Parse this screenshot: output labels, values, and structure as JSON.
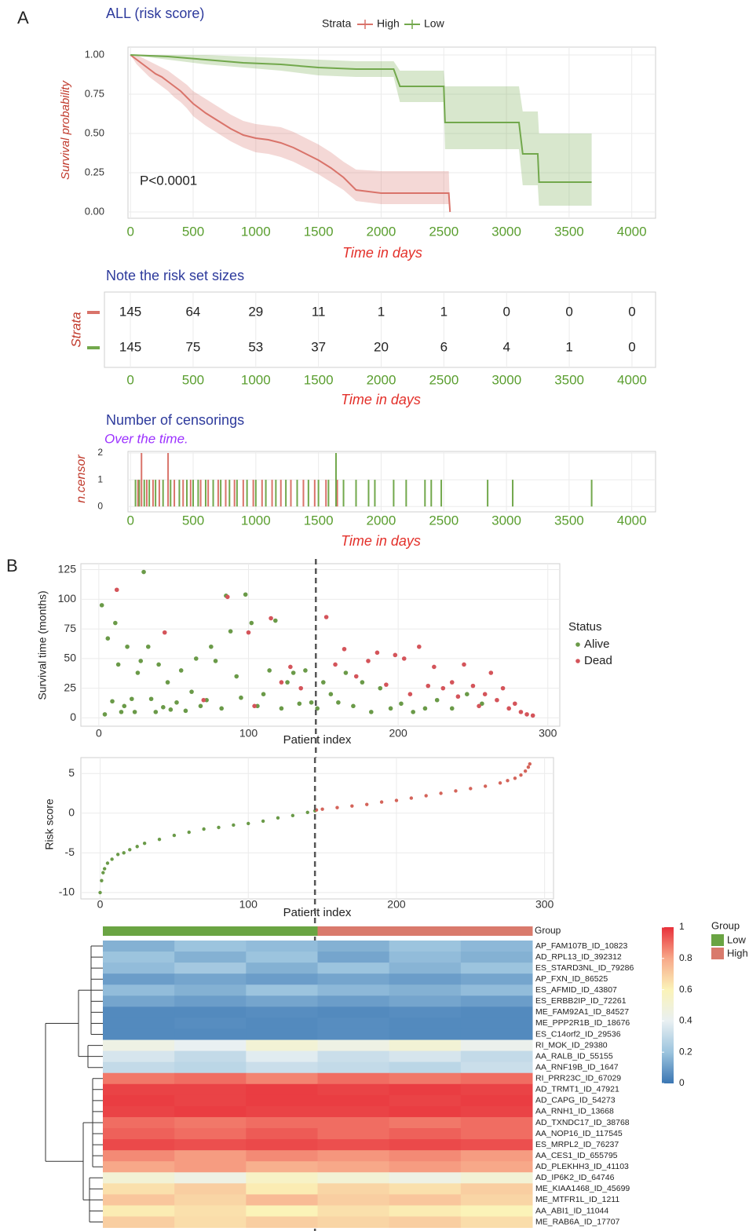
{
  "chart_data": [
    {
      "type": "survival",
      "panel": "A",
      "title": "ALL (risk score)",
      "legend_title": "Strata",
      "ylabel": "Survival probability",
      "xlabel": "Time in days",
      "annotation": "P<0.0001",
      "xlim": [
        -20,
        4190
      ],
      "ylim": [
        -0.04,
        1.05
      ],
      "xticks": [
        0,
        500,
        1000,
        1500,
        2000,
        2500,
        3000,
        3500,
        4000
      ],
      "yticks": [
        {
          "value": 0,
          "label": "0.00"
        },
        {
          "value": 0.25,
          "label": "0.25"
        },
        {
          "value": 0.5,
          "label": "0.50"
        },
        {
          "value": 0.75,
          "label": "0.75"
        },
        {
          "value": 1,
          "label": "1.00"
        }
      ],
      "grid": true,
      "series": [
        {
          "name": "High",
          "color": "#d9736a",
          "x": [
            0,
            50,
            100,
            150,
            200,
            250,
            300,
            350,
            400,
            450,
            500,
            600,
            700,
            800,
            900,
            1000,
            1100,
            1200,
            1300,
            1400,
            1500,
            1600,
            1700,
            1800,
            2000,
            2200,
            2540,
            2550
          ],
          "values": [
            1,
            0.97,
            0.94,
            0.91,
            0.88,
            0.86,
            0.83,
            0.8,
            0.77,
            0.73,
            0.69,
            0.63,
            0.58,
            0.53,
            0.49,
            0.47,
            0.46,
            0.44,
            0.41,
            0.37,
            0.33,
            0.28,
            0.22,
            0.14,
            0.12,
            0.12,
            0.12,
            0
          ],
          "lower": [
            1,
            0.94,
            0.9,
            0.86,
            0.83,
            0.8,
            0.77,
            0.73,
            0.7,
            0.66,
            0.61,
            0.55,
            0.5,
            0.45,
            0.41,
            0.38,
            0.37,
            0.35,
            0.32,
            0.28,
            0.24,
            0.19,
            0.14,
            0.07,
            0.05,
            0.05,
            0.05,
            0
          ],
          "upper": [
            1,
            1,
            0.98,
            0.96,
            0.94,
            0.92,
            0.9,
            0.87,
            0.84,
            0.81,
            0.77,
            0.72,
            0.67,
            0.62,
            0.58,
            0.56,
            0.55,
            0.54,
            0.51,
            0.47,
            0.43,
            0.38,
            0.32,
            0.27,
            0.26,
            0.26,
            0.26,
            0
          ]
        },
        {
          "name": "Low",
          "color": "#72a84c",
          "x": [
            0,
            300,
            600,
            900,
            1200,
            1500,
            1800,
            2100,
            2150,
            2500,
            2510,
            3100,
            3130,
            3250,
            3260,
            3680
          ],
          "values": [
            1,
            0.99,
            0.97,
            0.95,
            0.94,
            0.92,
            0.91,
            0.91,
            0.8,
            0.8,
            0.57,
            0.57,
            0.37,
            0.37,
            0.19,
            0.19
          ],
          "lower": [
            1,
            0.97,
            0.94,
            0.92,
            0.9,
            0.87,
            0.86,
            0.86,
            0.7,
            0.7,
            0.4,
            0.4,
            0.17,
            0.17,
            0.04,
            0.04
          ],
          "upper": [
            1,
            1,
            1,
            0.99,
            0.98,
            0.97,
            0.96,
            0.96,
            0.9,
            0.9,
            0.8,
            0.8,
            0.64,
            0.64,
            0.5,
            0.5
          ]
        }
      ]
    },
    {
      "type": "table",
      "title": "Note the risk set sizes",
      "ylabel": "Strata",
      "xlabel": "Time in days",
      "xlim": [
        -207,
        4188
      ],
      "xticks": [
        0,
        500,
        1000,
        1500,
        2000,
        2500,
        3000,
        3500,
        4000
      ],
      "grid": true,
      "x": [
        0,
        500,
        1000,
        1500,
        2000,
        2500,
        3000,
        3500,
        4000
      ],
      "series": [
        {
          "color": "#d9736a",
          "values": [
            145,
            64,
            29,
            11,
            1,
            1,
            0,
            0,
            0
          ]
        },
        {
          "color": "#72a84c",
          "values": [
            145,
            75,
            53,
            37,
            20,
            6,
            4,
            1,
            0
          ]
        }
      ]
    },
    {
      "type": "bar",
      "title": "Number of censorings",
      "subtitle": "Over the time.",
      "ylabel": "n.censor",
      "xlabel": "Time in days",
      "xlim": [
        -20,
        4190
      ],
      "ylim": [
        -0.2,
        2.06
      ],
      "xticks": [
        0,
        500,
        1000,
        1500,
        2000,
        2500,
        3000,
        3500,
        4000
      ],
      "yticks": [
        0,
        1,
        2
      ],
      "grid": true,
      "series": [
        {
          "color": "#d9736a",
          "x": [
            60,
            88,
            130,
            180,
            230,
            300,
            350,
            420,
            480,
            560,
            620,
            700,
            760,
            830,
            900,
            980,
            1050,
            1130,
            1200,
            1280,
            1380,
            1470,
            1560,
            1650
          ],
          "values": [
            1,
            2,
            1,
            1,
            1,
            2,
            1,
            1,
            1,
            1,
            1,
            1,
            1,
            1,
            1,
            1,
            1,
            1,
            1,
            1,
            1,
            1,
            1,
            1
          ]
        },
        {
          "color": "#72a84c",
          "x": [
            40,
            70,
            110,
            150,
            200,
            260,
            320,
            390,
            450,
            500,
            540,
            600,
            660,
            720,
            790,
            850,
            930,
            1000,
            1080,
            1160,
            1240,
            1330,
            1420,
            1500,
            1580,
            1640,
            1700,
            1800,
            1900,
            1950,
            2100,
            2200,
            2350,
            2400,
            2480,
            2850,
            3050,
            3680
          ],
          "values": [
            1,
            1,
            1,
            1,
            1,
            1,
            1,
            1,
            1,
            1,
            1,
            1,
            1,
            1,
            1,
            1,
            1,
            1,
            1,
            1,
            1,
            1,
            1,
            1,
            1,
            2,
            1,
            1,
            1,
            1,
            1,
            1,
            1,
            1,
            1,
            1,
            1,
            1
          ]
        }
      ]
    },
    {
      "type": "scatter",
      "panel": "B",
      "ylabel": "Survival time (months)",
      "xlabel": "Patient index",
      "legend_title": "Status",
      "xlim": [
        -12,
        308
      ],
      "ylim": [
        -7,
        130
      ],
      "xticks": [
        0,
        100,
        200,
        300
      ],
      "yticks": [
        0,
        25,
        50,
        75,
        100,
        125
      ],
      "grid": true,
      "cutoff": 145,
      "series": [
        {
          "name": "Alive",
          "color": "#6a9a48",
          "x": [
            2,
            4,
            6,
            9,
            11,
            13,
            15,
            17,
            19,
            22,
            24,
            26,
            28,
            30,
            33,
            35,
            38,
            40,
            43,
            46,
            48,
            52,
            55,
            58,
            62,
            65,
            68,
            72,
            75,
            78,
            82,
            85,
            88,
            92,
            95,
            98,
            102,
            106,
            110,
            114,
            118,
            122,
            126,
            130,
            134,
            138,
            142,
            146,
            150,
            155,
            160,
            165,
            170,
            176,
            182,
            188,
            195,
            202,
            210,
            218,
            226,
            236,
            246,
            256
          ],
          "values": [
            95,
            3,
            67,
            14,
            80,
            45,
            5,
            10,
            60,
            16,
            5,
            38,
            48,
            123,
            60,
            16,
            5,
            45,
            9,
            30,
            7,
            13,
            40,
            6,
            22,
            50,
            10,
            15,
            60,
            48,
            8,
            103,
            73,
            35,
            17,
            104,
            80,
            10,
            20,
            40,
            82,
            8,
            30,
            38,
            12,
            40,
            13,
            8,
            30,
            20,
            13,
            38,
            10,
            30,
            5,
            25,
            8,
            12,
            5,
            8,
            15,
            8,
            20,
            12
          ]
        },
        {
          "name": "Dead",
          "color": "#d4545a",
          "x": [
            12,
            44,
            70,
            86,
            100,
            104,
            115,
            122,
            128,
            135,
            152,
            158,
            164,
            172,
            180,
            186,
            192,
            198,
            204,
            208,
            214,
            220,
            224,
            230,
            236,
            240,
            244,
            250,
            254,
            258,
            262,
            266,
            270,
            274,
            278,
            282,
            286,
            290
          ],
          "values": [
            108,
            72,
            15,
            102,
            72,
            10,
            84,
            30,
            43,
            25,
            85,
            45,
            58,
            35,
            48,
            55,
            28,
            53,
            50,
            20,
            60,
            27,
            43,
            25,
            30,
            18,
            45,
            27,
            10,
            20,
            38,
            15,
            25,
            8,
            12,
            5,
            3,
            2
          ]
        }
      ]
    },
    {
      "type": "scatter",
      "ylabel": "Risk score",
      "xlabel": "Patient index",
      "xlim": [
        -13,
        306
      ],
      "ylim": [
        -10.8,
        7
      ],
      "xticks": [
        0,
        100,
        200,
        300
      ],
      "yticks": [
        -10,
        -5,
        0,
        5
      ],
      "grid": true,
      "cutoff": 145,
      "series": [
        {
          "color": "#6a9a48",
          "x": [
            0,
            1,
            2,
            3,
            5,
            8,
            12,
            16,
            20,
            25,
            30,
            40,
            50,
            60,
            70,
            80,
            90,
            100,
            110,
            120,
            130,
            140,
            145
          ],
          "values": [
            -10,
            -8.5,
            -7.5,
            -7,
            -6.3,
            -5.8,
            -5.2,
            -5,
            -4.6,
            -4.2,
            -3.8,
            -3.3,
            -2.8,
            -2.4,
            -2,
            -1.8,
            -1.5,
            -1.3,
            -1,
            -0.6,
            -0.3,
            0.1,
            0.3
          ]
        },
        {
          "color": "#d4645a",
          "x": [
            146,
            150,
            160,
            170,
            180,
            190,
            200,
            210,
            220,
            230,
            240,
            250,
            260,
            270,
            275,
            280,
            284,
            287,
            289,
            290
          ],
          "values": [
            0.4,
            0.5,
            0.7,
            0.9,
            1.1,
            1.4,
            1.6,
            1.9,
            2.2,
            2.5,
            2.8,
            3.1,
            3.4,
            3.8,
            4.1,
            4.4,
            4.8,
            5.3,
            5.8,
            6.2
          ]
        }
      ]
    },
    {
      "type": "heatmap",
      "annotation_label": "Group",
      "legend_title": "Group",
      "groups": [
        {
          "name": "Low",
          "color": "#6aa443"
        },
        {
          "name": "High",
          "color": "#d97a6c"
        }
      ],
      "column_groups": [
        0,
        0,
        0,
        1,
        1,
        1
      ],
      "colorbar_ticks": [
        0,
        0.2,
        0.4,
        0.6,
        0.8,
        1
      ],
      "colors": [
        "#3a76b3",
        "#9cc4de",
        "#e9f0f2",
        "#fbf3b8",
        "#f7a889",
        "#e8313a"
      ],
      "rows": [
        "AP_FAM107B_ID_10823",
        "AD_RPL13_ID_392312",
        "ES_STARD3NL_ID_79286",
        "AP_FXN_ID_86525",
        "ES_AFMID_ID_43807",
        "ES_ERBB2IP_ID_72261",
        "ME_FAM92A1_ID_84527",
        "ME_PPP2R1B_ID_18676",
        "ES_C14orf2_ID_29536",
        "RI_MOK_ID_29380",
        "AA_RALB_ID_55155",
        "AA_RNF19B_ID_1647",
        "RI_PRR23C_ID_67029",
        "AD_TRMT1_ID_47921",
        "AD_CAPG_ID_54273",
        "AA_RNH1_ID_13668",
        "AD_TXNDC17_ID_38768",
        "AA_NOP16_ID_117545",
        "ES_MRPL2_ID_76237",
        "AA_CES1_ID_655795",
        "AD_PLEKHH3_ID_41103",
        "AD_IP6K2_ID_64746",
        "ME_KIAA1468_ID_45699",
        "ME_MTFR1L_ID_1211",
        "AA_ABI1_ID_11044",
        "ME_RAB6A_ID_17707"
      ],
      "values": [
        [
          0.15,
          0.2,
          0.18,
          0.15,
          0.2,
          0.17
        ],
        [
          0.2,
          0.15,
          0.2,
          0.12,
          0.18,
          0.15
        ],
        [
          0.18,
          0.22,
          0.15,
          0.2,
          0.16,
          0.2
        ],
        [
          0.1,
          0.12,
          0.1,
          0.12,
          0.1,
          0.12
        ],
        [
          0.18,
          0.15,
          0.2,
          0.17,
          0.15,
          0.18
        ],
        [
          0.12,
          0.1,
          0.12,
          0.1,
          0.12,
          0.1
        ],
        [
          0.05,
          0.05,
          0.06,
          0.05,
          0.06,
          0.05
        ],
        [
          0.05,
          0.06,
          0.05,
          0.06,
          0.05,
          0.05
        ],
        [
          0.05,
          0.05,
          0.05,
          0.06,
          0.05,
          0.05
        ],
        [
          0.45,
          0.4,
          0.5,
          0.45,
          0.5,
          0.42
        ],
        [
          0.35,
          0.3,
          0.38,
          0.32,
          0.35,
          0.3
        ],
        [
          0.3,
          0.28,
          0.32,
          0.3,
          0.28,
          0.32
        ],
        [
          0.88,
          0.9,
          0.86,
          0.9,
          0.88,
          0.9
        ],
        [
          0.97,
          0.97,
          0.98,
          0.97,
          0.98,
          0.97
        ],
        [
          0.98,
          0.97,
          0.98,
          0.98,
          0.97,
          0.98
        ],
        [
          0.97,
          0.98,
          0.97,
          0.97,
          0.98,
          0.97
        ],
        [
          0.9,
          0.88,
          0.9,
          0.9,
          0.88,
          0.9
        ],
        [
          0.92,
          0.9,
          0.93,
          0.9,
          0.92,
          0.9
        ],
        [
          0.96,
          0.95,
          0.96,
          0.95,
          0.96,
          0.95
        ],
        [
          0.85,
          0.82,
          0.85,
          0.83,
          0.85,
          0.82
        ],
        [
          0.8,
          0.82,
          0.78,
          0.8,
          0.82,
          0.8
        ],
        [
          0.5,
          0.45,
          0.55,
          0.5,
          0.45,
          0.5
        ],
        [
          0.65,
          0.7,
          0.62,
          0.68,
          0.65,
          0.7
        ],
        [
          0.72,
          0.68,
          0.75,
          0.7,
          0.72,
          0.68
        ],
        [
          0.62,
          0.65,
          0.6,
          0.65,
          0.62,
          0.6
        ],
        [
          0.7,
          0.66,
          0.7,
          0.68,
          0.7,
          0.66
        ]
      ]
    }
  ]
}
